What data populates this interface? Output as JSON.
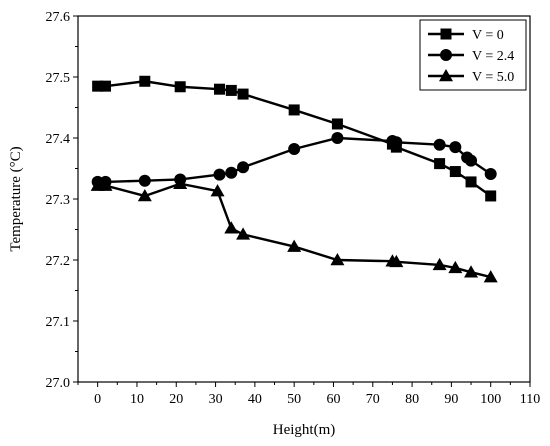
{
  "chart_data": {
    "type": "line",
    "xlabel": "Height(m)",
    "ylabel": "Temperature (°C)",
    "xlim": [
      -5,
      110
    ],
    "ylim": [
      27.0,
      27.6
    ],
    "xticks": [
      0,
      10,
      20,
      30,
      40,
      50,
      60,
      70,
      80,
      90,
      100,
      110
    ],
    "yticks": [
      27.0,
      27.1,
      27.2,
      27.3,
      27.4,
      27.5,
      27.6
    ],
    "ytick_labels": [
      "27.0",
      "27.1",
      "27.2",
      "27.3",
      "27.4",
      "27.5",
      "27.6"
    ],
    "grid": false,
    "legend_position": "top-right",
    "series": [
      {
        "name": "V = 0",
        "marker": "square",
        "x": [
          0,
          2,
          12,
          21,
          31,
          34,
          37,
          50,
          61,
          75,
          76,
          87,
          91,
          95,
          100
        ],
        "y": [
          27.485,
          27.485,
          27.493,
          27.484,
          27.48,
          27.478,
          27.472,
          27.446,
          27.423,
          27.39,
          27.385,
          27.358,
          27.345,
          27.328,
          27.305
        ]
      },
      {
        "name": "V = 2.4",
        "marker": "circle",
        "x": [
          0,
          2,
          12,
          21,
          31,
          34,
          37,
          50,
          61,
          75,
          76,
          87,
          91,
          94,
          95,
          100
        ],
        "y": [
          27.328,
          27.328,
          27.33,
          27.332,
          27.34,
          27.343,
          27.352,
          27.382,
          27.4,
          27.395,
          27.393,
          27.389,
          27.385,
          27.368,
          27.363,
          27.341
        ]
      },
      {
        "name": "V = 5.0",
        "marker": "triangle",
        "x": [
          0,
          2,
          12,
          21,
          30.5,
          34,
          37,
          50,
          61,
          75,
          76,
          87,
          91,
          95,
          100
        ],
        "y": [
          27.322,
          27.322,
          27.305,
          27.325,
          27.313,
          27.252,
          27.242,
          27.222,
          27.2,
          27.198,
          27.197,
          27.192,
          27.187,
          27.18,
          27.172
        ]
      }
    ]
  }
}
